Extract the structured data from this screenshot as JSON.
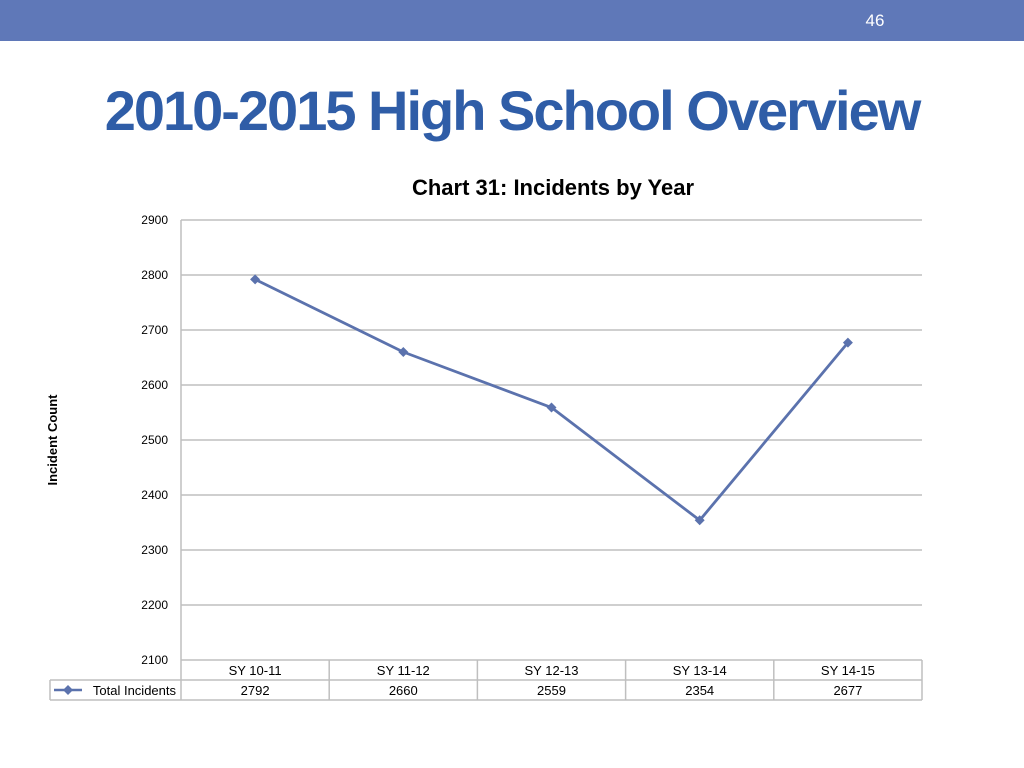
{
  "slide": {
    "page_number": "46",
    "title": "2010-2015 High School Overview"
  },
  "colors": {
    "top_bar": "#5f78b8",
    "title": "#2f5da7",
    "series_line": "#5b72ad",
    "gridline": "#bfbfbf",
    "table_border": "#bfbfbf"
  },
  "chart_data": {
    "type": "line",
    "title": "Chart 31: Incidents by Year",
    "xlabel": "",
    "ylabel": "Incident Count",
    "categories": [
      "SY 10-11",
      "SY 11-12",
      "SY 12-13",
      "SY 13-14",
      "SY 14-15"
    ],
    "series": [
      {
        "name": "Total Incidents",
        "values": [
          2792,
          2660,
          2559,
          2354,
          2677
        ]
      }
    ],
    "ylim": [
      2100,
      2900
    ],
    "yticks": [
      2100,
      2200,
      2300,
      2400,
      2500,
      2600,
      2700,
      2800,
      2900
    ],
    "grid": true,
    "legend": "data-table",
    "marker": "diamond"
  }
}
